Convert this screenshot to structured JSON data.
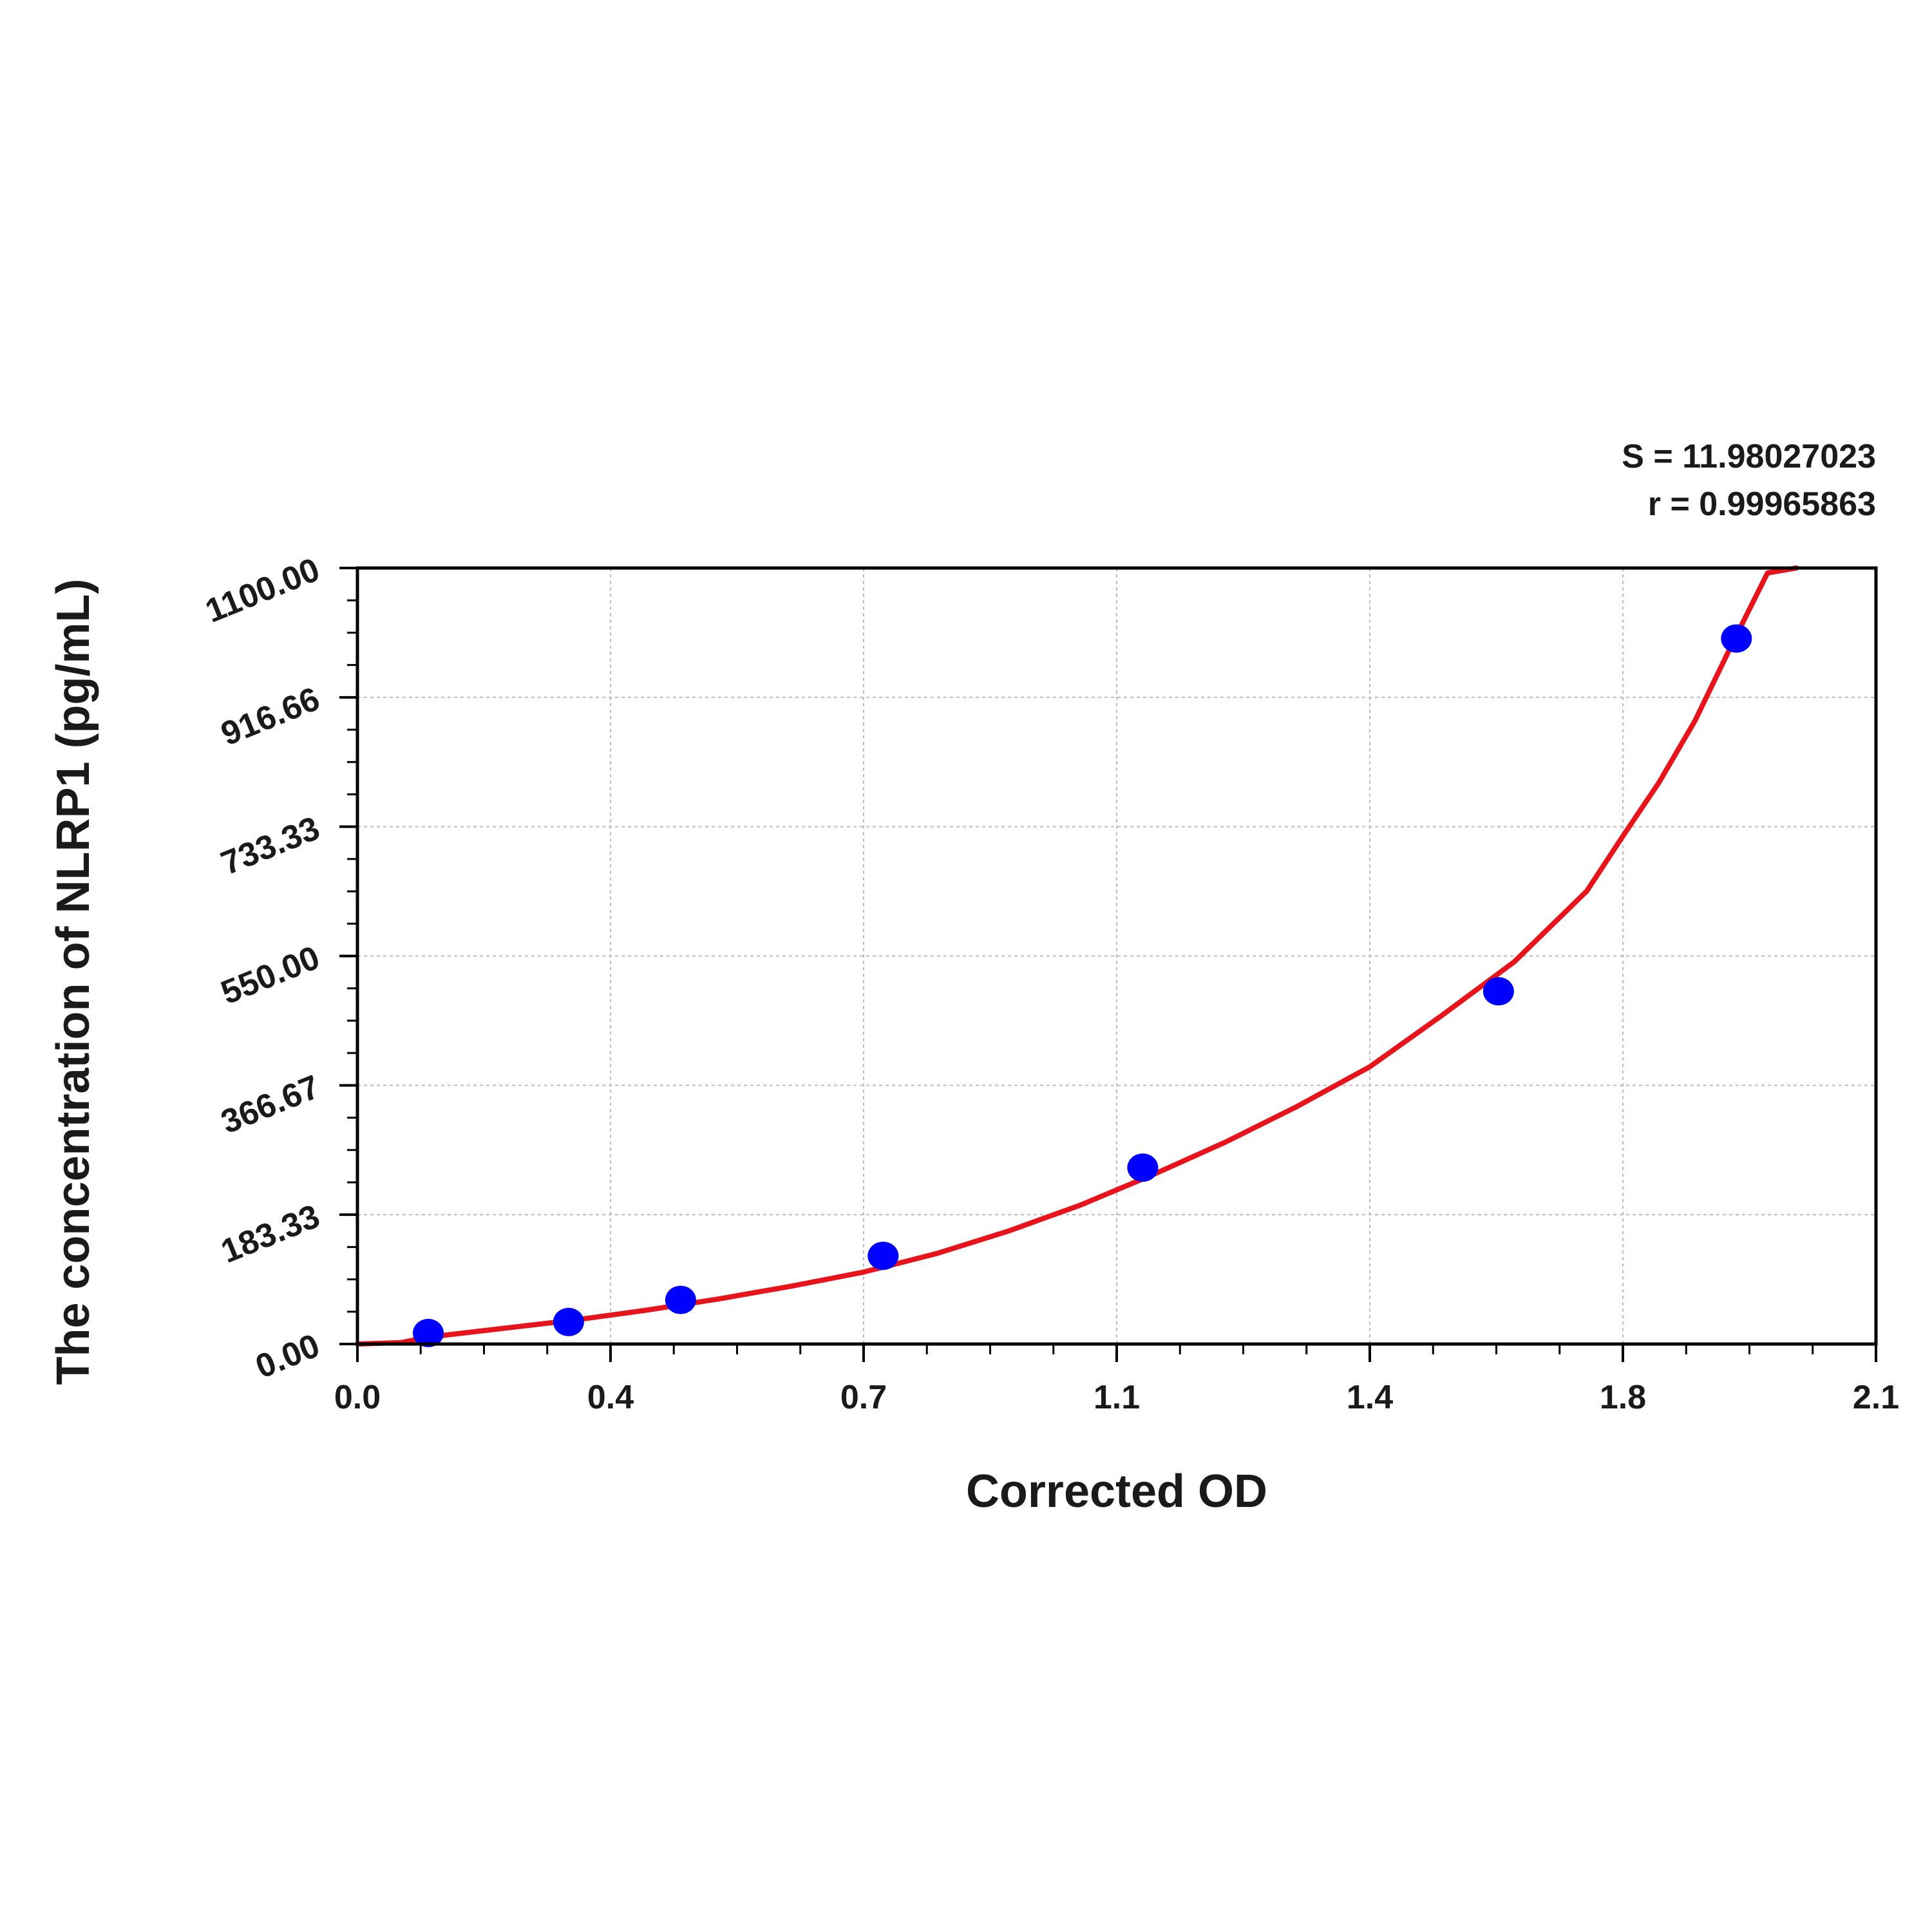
{
  "chart_data": {
    "type": "scatter",
    "xlabel": "Corrected OD",
    "ylabel": "The concentration of NLRP1 (pg/mL)",
    "xlim": [
      0.0,
      2.1
    ],
    "ylim": [
      0.0,
      1100.0
    ],
    "x_ticks": [
      "0.0",
      "0.4",
      "0.7",
      "1.1",
      "1.4",
      "1.8",
      "2.1"
    ],
    "y_ticks": [
      "0.00",
      "183.33",
      "366.67",
      "550.00",
      "733.33",
      "916.66",
      "1100.00"
    ],
    "grid": true,
    "stats": {
      "s_label": "S = 11.98027023",
      "r_label": "r = 0.99965863"
    },
    "series": [
      {
        "type": "scatter",
        "color": "#0000ff",
        "x": [
          0.098,
          0.292,
          0.447,
          0.727,
          1.086,
          1.578,
          1.907
        ],
        "y": [
          15.6,
          31.2,
          62.5,
          125,
          250,
          500,
          1000
        ]
      },
      {
        "type": "line",
        "color": "#e8141c",
        "x": [
          0.0,
          0.06,
          0.1,
          0.2,
          0.3,
          0.4,
          0.5,
          0.6,
          0.7,
          0.8,
          0.9,
          1.0,
          1.1,
          1.2,
          1.3,
          1.4,
          1.5,
          1.6,
          1.7,
          1.75,
          1.8,
          1.85,
          1.9,
          1.95,
          1.99
        ],
        "y": [
          0,
          2,
          10,
          22,
          34,
          48,
          64,
          82,
          102,
          128,
          160,
          197,
          240,
          286,
          337,
          393,
          466,
          542,
          642,
          720,
          796,
          884,
          990,
          1093,
          1100
        ]
      }
    ]
  }
}
